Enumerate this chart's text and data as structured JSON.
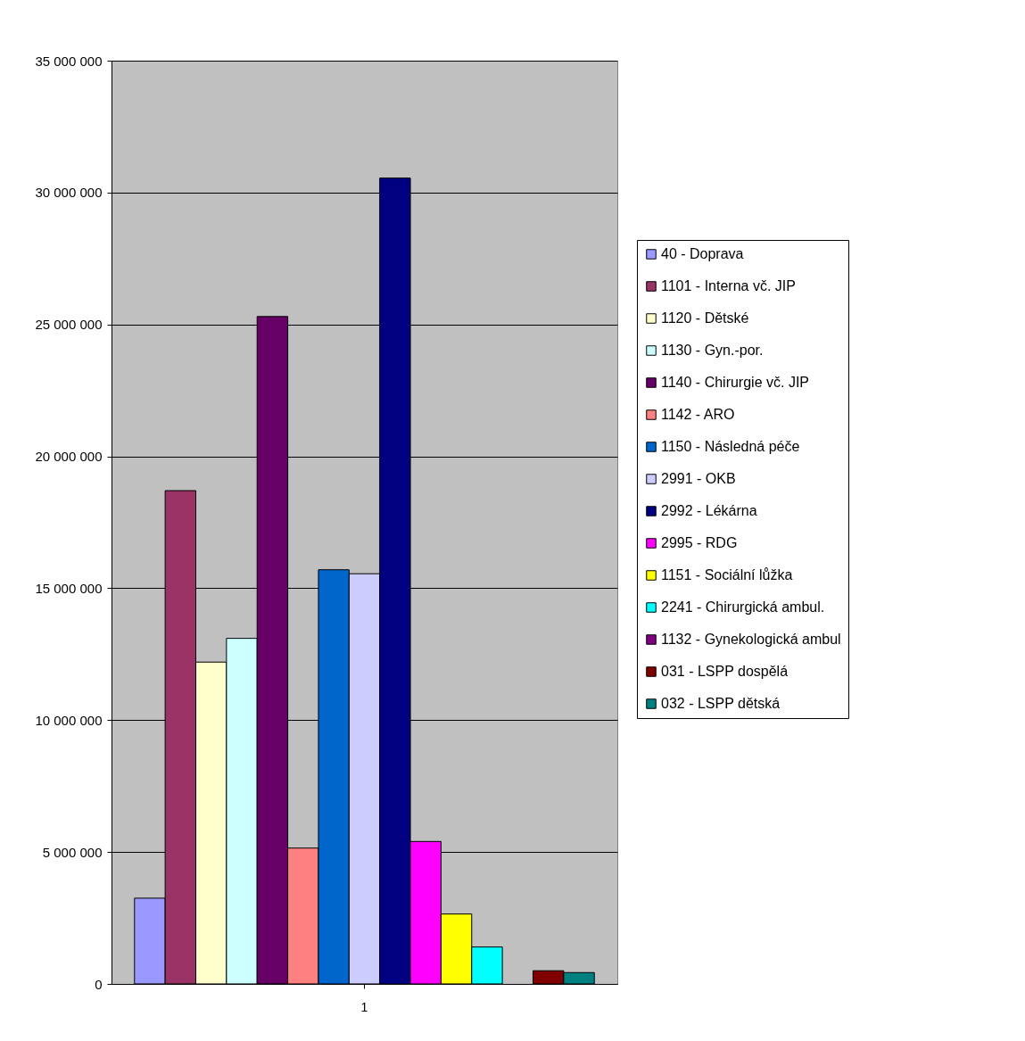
{
  "chart_data": {
    "type": "bar",
    "categories": [
      "1"
    ],
    "series": [
      {
        "name": "40 - Doprava",
        "color": "#9999ff",
        "values": [
          3250000
        ]
      },
      {
        "name": "1101 - Interna vč. JIP",
        "color": "#993366",
        "values": [
          18700000
        ]
      },
      {
        "name": "1120 - Dětské",
        "color": "#ffffcc",
        "values": [
          12200000
        ]
      },
      {
        "name": "1130 - Gyn.-por.",
        "color": "#ccffff",
        "values": [
          13100000
        ]
      },
      {
        "name": "1140 - Chirurgie vč. JIP",
        "color": "#660066",
        "values": [
          25300000
        ]
      },
      {
        "name": "1142 - ARO",
        "color": "#ff8080",
        "values": [
          5150000
        ]
      },
      {
        "name": "1150 - Následná péče",
        "color": "#0066cc",
        "values": [
          15700000
        ]
      },
      {
        "name": "2991 - OKB",
        "color": "#ccccff",
        "values": [
          15550000
        ]
      },
      {
        "name": "2992 - Lékárna",
        "color": "#000080",
        "values": [
          30550000
        ]
      },
      {
        "name": "2995 - RDG",
        "color": "#ff00ff",
        "values": [
          5400000
        ]
      },
      {
        "name": "1151 - Sociální lůžka",
        "color": "#ffff00",
        "values": [
          2650000
        ]
      },
      {
        "name": "2241 - Chirurgická ambul.",
        "color": "#00ffff",
        "values": [
          1400000
        ]
      },
      {
        "name": "1132 - Gynekologická ambul",
        "color": "#800080",
        "values": [
          null
        ]
      },
      {
        "name": "031 -  LSPP dospělá",
        "color": "#800000",
        "values": [
          500000
        ]
      },
      {
        "name": "032 -  LSPP dětská",
        "color": "#008080",
        "values": [
          430000
        ]
      }
    ],
    "ylim": [
      0,
      35000000
    ],
    "yticks": [
      {
        "value": 0,
        "label": "0"
      },
      {
        "value": 5000000,
        "label": "5 000 000"
      },
      {
        "value": 10000000,
        "label": "10 000 000"
      },
      {
        "value": 15000000,
        "label": "15 000 000"
      },
      {
        "value": 20000000,
        "label": "20 000 000"
      },
      {
        "value": 25000000,
        "label": "25 000 000"
      },
      {
        "value": 30000000,
        "label": "30 000 000"
      },
      {
        "value": 35000000,
        "label": "35 000 000"
      }
    ],
    "grid": "y",
    "legend": "right"
  }
}
